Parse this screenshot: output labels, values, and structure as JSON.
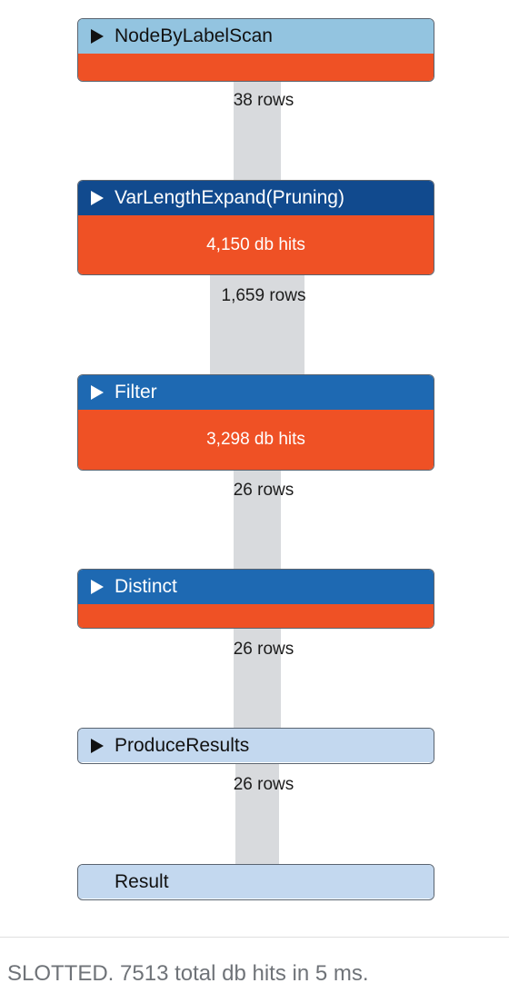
{
  "colors": {
    "light_blue": "#93c4e0",
    "dark_navy": "#114a8e",
    "medium_blue": "#1e69b2",
    "pale_blue": "#c3d8ef",
    "hits_orange": "#ef5125",
    "connector_gray": "#d8dadd"
  },
  "operators": [
    {
      "name": "NodeByLabelScan",
      "hits": "",
      "header_color": "#93c4e0",
      "text_color": "#111111",
      "icon": "expand-triangle-icon"
    },
    {
      "name": "VarLengthExpand(Pruning)",
      "hits": "4,150 db hits",
      "header_color": "#114a8e",
      "text_color": "#ffffff",
      "icon": "expand-triangle-icon"
    },
    {
      "name": "Filter",
      "hits": "3,298 db hits",
      "header_color": "#1e69b2",
      "text_color": "#ffffff",
      "icon": "expand-triangle-icon"
    },
    {
      "name": "Distinct",
      "hits": "",
      "header_color": "#1e69b2",
      "text_color": "#ffffff",
      "icon": "expand-triangle-icon"
    },
    {
      "name": "ProduceResults",
      "header_color": "#c3d8ef",
      "text_color": "#111111",
      "icon": "expand-triangle-icon"
    },
    {
      "name": "Result",
      "header_color": "#c3d8ef",
      "text_color": "#111111"
    }
  ],
  "row_counts": [
    "38 rows",
    "1,659 rows",
    "26 rows",
    "26 rows",
    "26 rows"
  ],
  "footer": {
    "summary": "SLOTTED. 7513 total db hits in 5 ms."
  }
}
